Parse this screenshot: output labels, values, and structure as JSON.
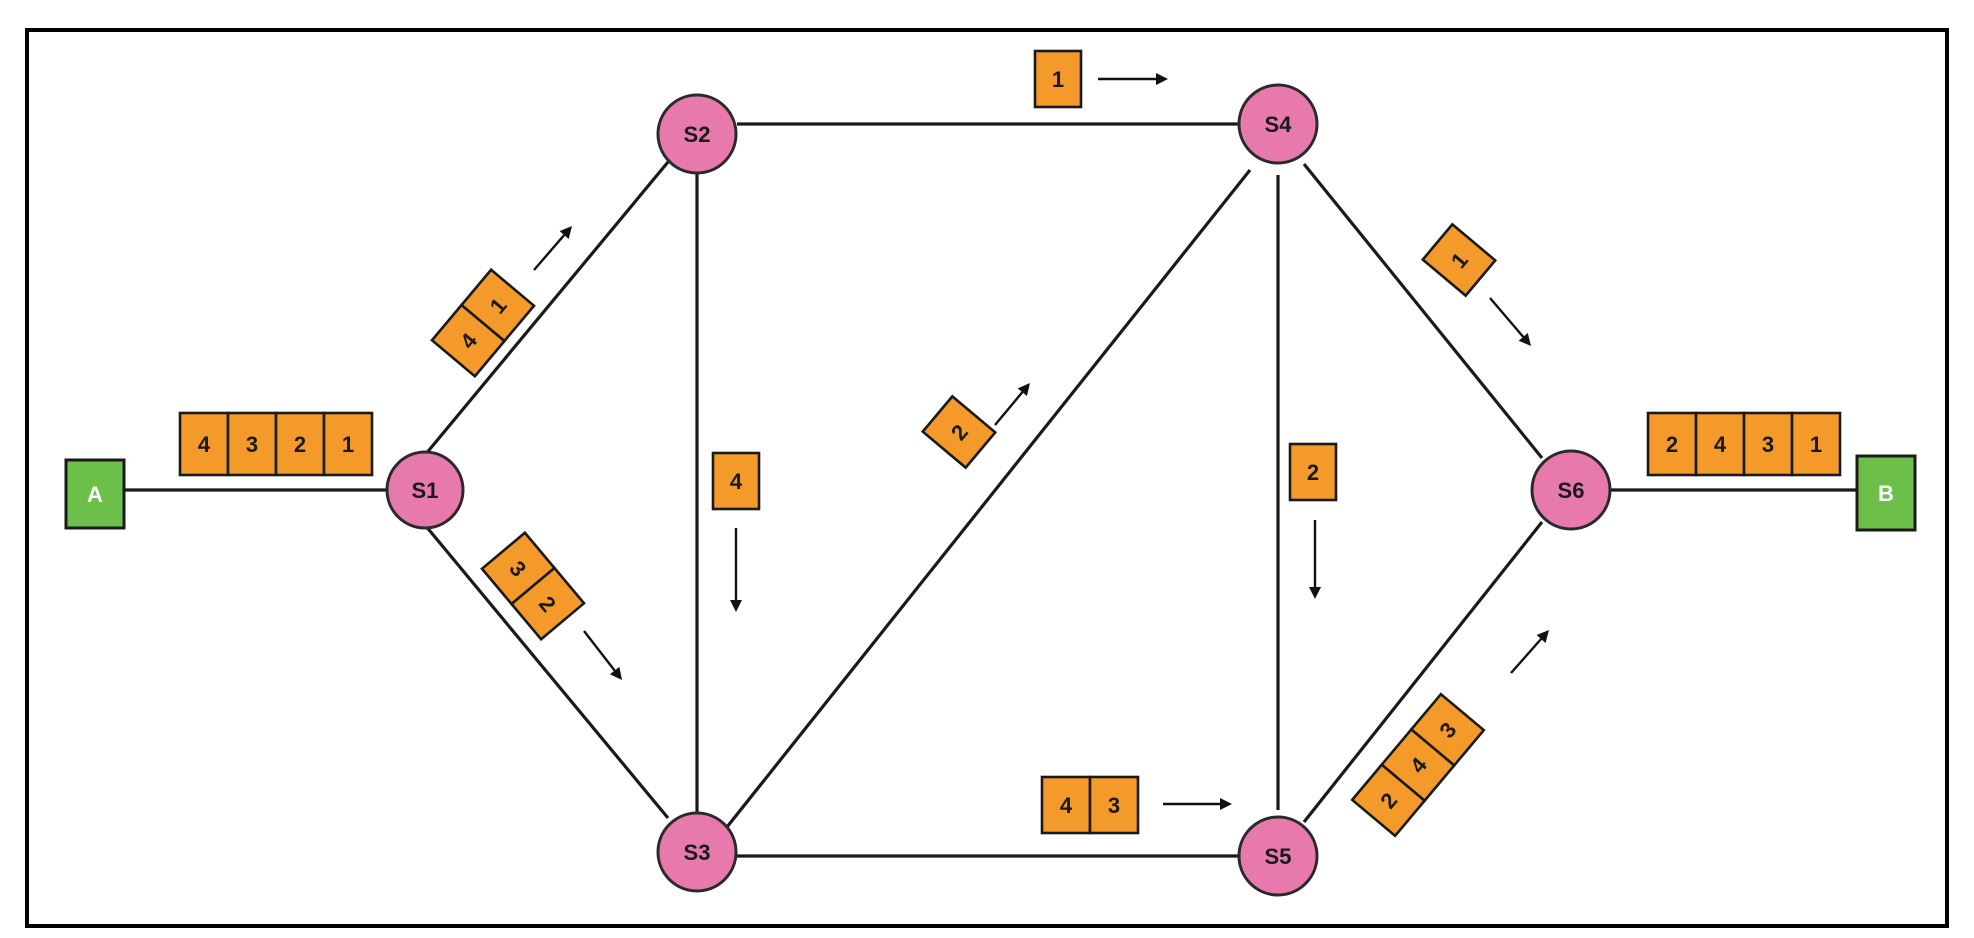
{
  "colors": {
    "switch_fill": "#e879ac",
    "endpoint_fill": "#6cc04a",
    "packet_fill": "#f39a2b",
    "line": "#1a1a1a"
  },
  "endpoints": {
    "a": "A",
    "b": "B"
  },
  "switches": {
    "s1": "S1",
    "s2": "S2",
    "s3": "S3",
    "s4": "S4",
    "s5": "S5",
    "s6": "S6"
  },
  "packet_groups": {
    "a_s1": [
      "4",
      "3",
      "2",
      "1"
    ],
    "s1_s2": [
      "4",
      "1"
    ],
    "s1_s3": [
      "3",
      "2"
    ],
    "s2_s3": [
      "4"
    ],
    "s2_s4": [
      "1"
    ],
    "s3_s4": [
      "2"
    ],
    "s3_s5": [
      "4",
      "3"
    ],
    "s4_s5": [
      "2"
    ],
    "s4_s6": [
      "1"
    ],
    "s5_s6": [
      "2",
      "4",
      "3"
    ],
    "s6_b": [
      "2",
      "4",
      "3",
      "1"
    ]
  }
}
